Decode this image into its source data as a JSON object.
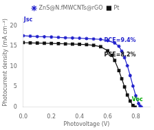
{
  "chart_data": {
    "type": "line",
    "xlabel": "Photovoltage (V)",
    "ylabel": "Photocurrent density (mA cm⁻²)",
    "xlim": [
      0.0,
      0.9
    ],
    "ylim": [
      0,
      22
    ],
    "xticks": [
      {
        "value": 0,
        "label": "0.0"
      },
      0.2,
      0.4,
      0.6,
      0.8
    ],
    "yticks": [
      0,
      5,
      10,
      15,
      20
    ],
    "grid": false,
    "legend": "upper center",
    "series": [
      {
        "name": "ZnS@N.fMWCNTs@rGO",
        "color": "#2222cc",
        "marker": "star",
        "x": [
          0.0,
          0.05,
          0.1,
          0.15,
          0.2,
          0.25,
          0.3,
          0.35,
          0.4,
          0.45,
          0.5,
          0.55,
          0.6,
          0.65,
          0.68,
          0.7,
          0.72,
          0.74,
          0.76,
          0.78,
          0.8,
          0.82,
          0.83,
          0.84
        ],
        "values": [
          17.6,
          17.5,
          17.4,
          17.35,
          17.3,
          17.2,
          17.1,
          17.05,
          17.0,
          16.9,
          16.8,
          16.7,
          16.4,
          15.8,
          15.0,
          13.8,
          12.2,
          10.2,
          7.8,
          5.2,
          2.8,
          0.9,
          0.3,
          0.0
        ]
      },
      {
        "name": "Pt",
        "color": "#111111",
        "marker": "square",
        "x": [
          0.0,
          0.05,
          0.1,
          0.15,
          0.2,
          0.25,
          0.3,
          0.35,
          0.4,
          0.45,
          0.5,
          0.55,
          0.6,
          0.63,
          0.65,
          0.68,
          0.7,
          0.72,
          0.74,
          0.76,
          0.78,
          0.795
        ],
        "values": [
          15.9,
          15.85,
          15.8,
          15.75,
          15.7,
          15.65,
          15.6,
          15.55,
          15.5,
          15.4,
          15.25,
          14.9,
          13.9,
          12.8,
          11.5,
          9.0,
          7.0,
          5.0,
          3.0,
          1.5,
          0.4,
          0.0
        ]
      }
    ],
    "annotations": [
      {
        "text": "Jsc",
        "x": 0.005,
        "y": 20.8,
        "color": "#2222cc"
      },
      {
        "text": "Voc",
        "x": 0.772,
        "y": 1.2,
        "color": "#00aa00"
      },
      {
        "text": "PCE=9.4%",
        "x": 0.575,
        "y": 15.8,
        "color": "#2222cc"
      },
      {
        "text": "PCE=8.2%",
        "x": 0.575,
        "y": 12.2,
        "color": "#111111"
      }
    ]
  }
}
